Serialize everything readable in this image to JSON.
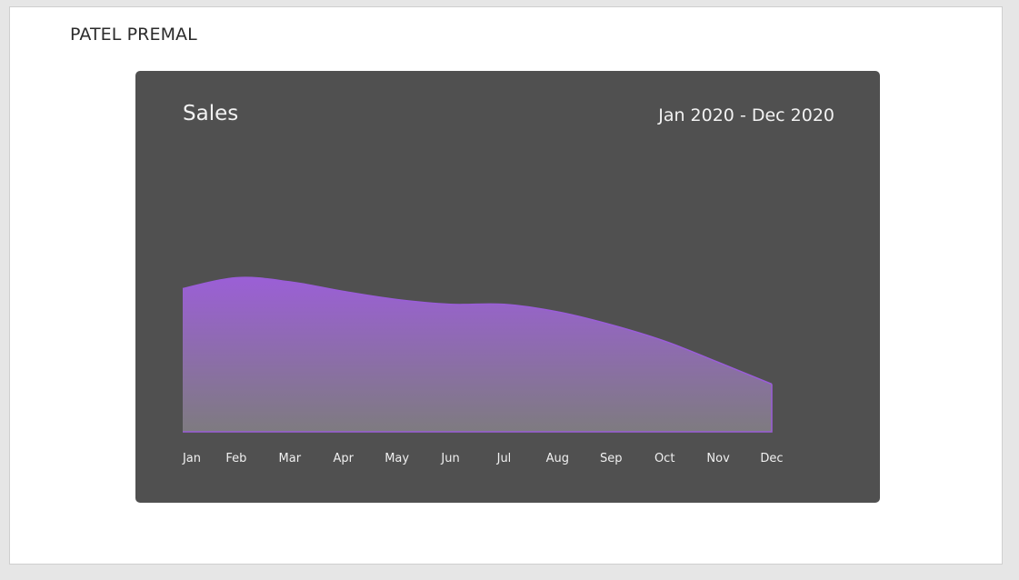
{
  "page": {
    "author": "PATEL PREMAL"
  },
  "card": {
    "title": "Sales",
    "date_range": "Jan 2020 - Dec 2020"
  },
  "colors": {
    "card_background": "#505050",
    "area_top": "#9b5fd6",
    "area_bottom": "#7e7b80",
    "area_stroke": "#9a5ed8"
  },
  "chart_data": {
    "type": "area",
    "title": "Sales",
    "subtitle": "Jan 2020 - Dec 2020",
    "categories": [
      "Jan",
      "Feb",
      "Mar",
      "Apr",
      "May",
      "Jun",
      "Jul",
      "Aug",
      "Sep",
      "Oct",
      "Nov",
      "Dec"
    ],
    "values": [
      210,
      226,
      220,
      206,
      194,
      187,
      187,
      176,
      157,
      133,
      102,
      70
    ],
    "ylim": [
      0,
      300
    ],
    "grid": false,
    "legend": "none",
    "xlabel": "",
    "ylabel": ""
  }
}
